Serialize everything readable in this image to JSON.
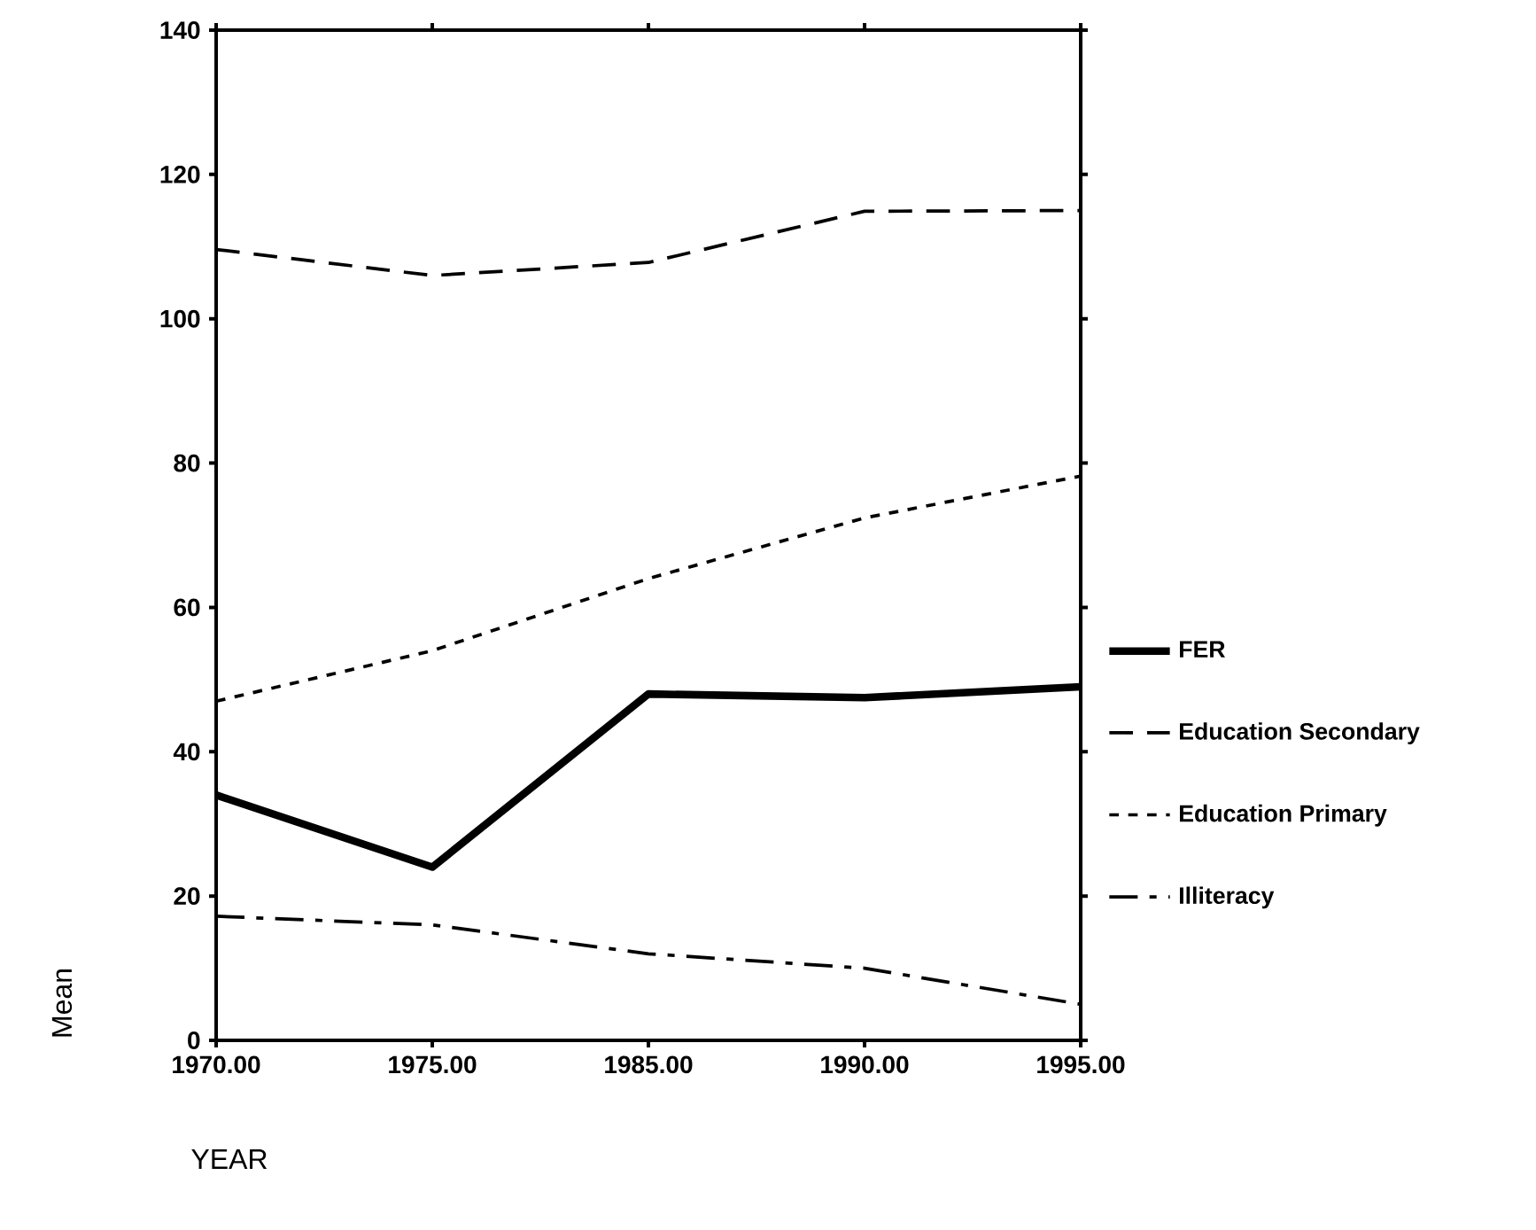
{
  "chart_data": {
    "type": "line",
    "xlabel": "YEAR",
    "ylabel": "Mean",
    "categories": [
      "1970.00",
      "1975.00",
      "1985.00",
      "1990.00",
      "1995.00"
    ],
    "ylim": [
      0,
      140
    ],
    "yticks": [
      0,
      20,
      40,
      60,
      80,
      100,
      120,
      140
    ],
    "legend": "right",
    "grid": false,
    "marker": "none",
    "series": [
      {
        "name": "FER",
        "color": "#000000",
        "line_style": "solid",
        "values": [
          34,
          24,
          48,
          47.5,
          49
        ]
      },
      {
        "name": "Education Secondary",
        "color": "#000000",
        "line_style": "dashed",
        "values": [
          109.6,
          106,
          107.8,
          114.9,
          115
        ]
      },
      {
        "name": "Education Primary",
        "color": "#000000",
        "line_style": "dotted",
        "values": [
          47,
          54,
          64,
          72.4,
          78.2
        ]
      },
      {
        "name": "Illiteracy",
        "color": "#000000",
        "line_style": "dashdot",
        "values": [
          17.2,
          16,
          12,
          10,
          5
        ]
      }
    ]
  }
}
